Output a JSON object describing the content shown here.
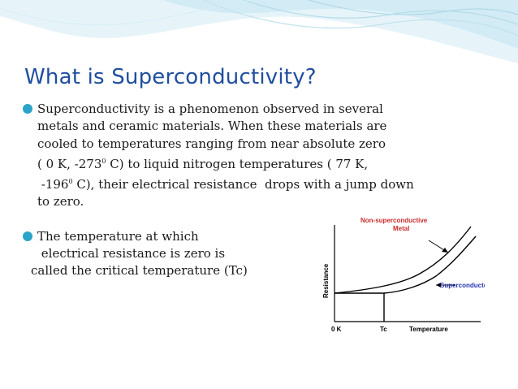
{
  "slide": {
    "title": "What is Superconductivity?",
    "bullet1": {
      "line1": "Superconductivity is a phenomenon observed in several",
      "line2": "metals and ceramic materials. When these materials are",
      "line3": "cooled to temperatures ranging from near absolute zero",
      "line4_a": "( 0 K, -273",
      "line4_sup": "0",
      "line4_b": " C) to liquid nitrogen temperatures ( 77 K,",
      "line5_a": " -196",
      "line5_sup": "0",
      "line5_b": " C), their electrical resistance  drops with a jump down",
      "line6": "to zero."
    },
    "bullet2": {
      "line1": "The temperature at which",
      "line2": " electrical resistance is zero is",
      "line3": "called the critical temperature (Tc)"
    }
  },
  "graph": {
    "curve1_label_line1": "Non-superconductive",
    "curve1_label_line2": "Metal",
    "curve2_label": "Superconductor",
    "y_label": "Resistance",
    "x_tick_0": "0 K",
    "x_tick_tc": "Tc",
    "x_label": "Temperature",
    "label_color": "#cc2a2a",
    "superconductor_label_color": "#2233aa"
  },
  "colors": {
    "title": "#1f4e9e",
    "bullet": "#2aa5c9",
    "wave_fill": "#cfe9f3"
  }
}
